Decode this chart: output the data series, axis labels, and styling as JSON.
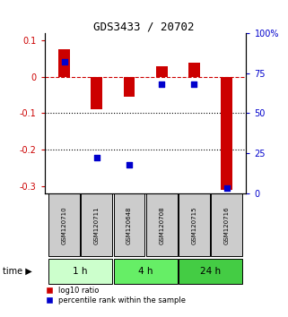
{
  "title": "GDS3433 / 20702",
  "samples": [
    "GSM120710",
    "GSM120711",
    "GSM120648",
    "GSM120708",
    "GSM120715",
    "GSM120716"
  ],
  "log10_ratio": [
    0.075,
    -0.09,
    -0.055,
    0.028,
    0.038,
    -0.31
  ],
  "percentile_rank": [
    82,
    22,
    18,
    68,
    68,
    3
  ],
  "time_groups": [
    {
      "label": "1 h",
      "start": 0,
      "end": 1,
      "color": "#ccffcc"
    },
    {
      "label": "4 h",
      "start": 2,
      "end": 3,
      "color": "#66ee66"
    },
    {
      "label": "24 h",
      "start": 4,
      "end": 5,
      "color": "#44cc44"
    }
  ],
  "bar_color": "#cc0000",
  "dot_color": "#0000cc",
  "ylim_left": [
    -0.32,
    0.12
  ],
  "ylim_right": [
    0,
    100
  ],
  "yticks_left": [
    0.1,
    0.0,
    -0.1,
    -0.2,
    -0.3
  ],
  "yticks_right": [
    100,
    75,
    50,
    25,
    0
  ],
  "hline_color": "#cc0000",
  "dotted_line_color": "#000000",
  "bg_color": "#ffffff",
  "sample_bg_color": "#cccccc",
  "legend_red_label": "log10 ratio",
  "legend_blue_label": "percentile rank within the sample",
  "bar_width": 0.35,
  "dot_size": 25
}
